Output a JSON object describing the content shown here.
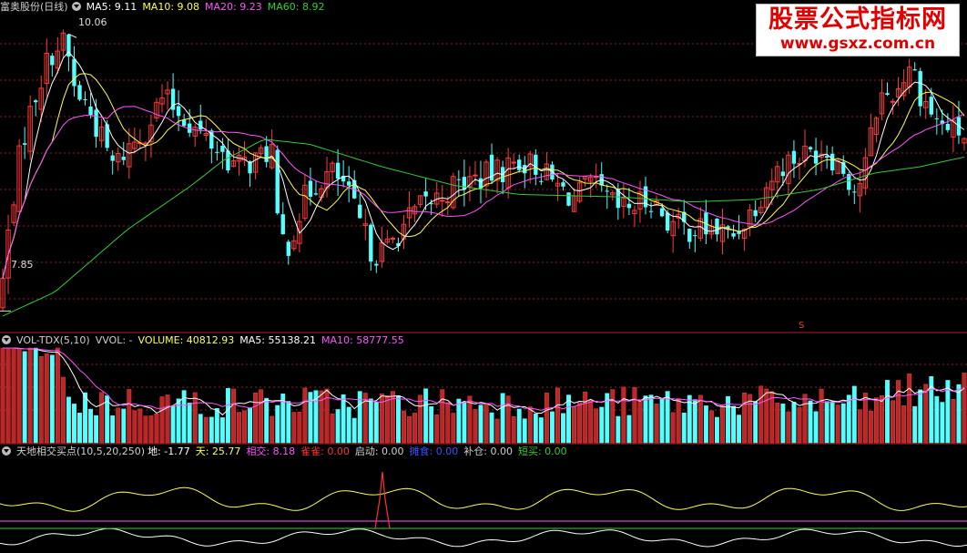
{
  "price_header": {
    "name": "富奥股份(日线)",
    "ma5": "MA5: 9.11",
    "ma10": "MA10: 9.08",
    "ma20": "MA20: 9.23",
    "ma60": "MA60: 8.92"
  },
  "price_labels": {
    "high": "10.06",
    "low": "7.85",
    "marker": "S"
  },
  "vol_header": {
    "name": "VOL-TDX(5,10)",
    "vvol": "VVOL: -",
    "volume": "VOLUME: 40812.93",
    "ma5": "MA5: 55138.21",
    "ma10": "MA10: 58777.55"
  },
  "ind_header": {
    "name": "天地相交买点(10,5,20,250)",
    "di": "地: -1.77",
    "tian": "天: 25.77",
    "xiangjiao": "相交: 8.18",
    "quequ": "雀雀: 0.00",
    "qidong": "启动: 0.00",
    "tanshi": "摊食: 0.00",
    "bucang": "补仓: 0.00",
    "duanmai": "短买: 0.00"
  },
  "watermark": {
    "title": "股票公式指标网",
    "url": "www.gsxz.com.cn"
  },
  "colors": {
    "up": "#ff3b3b",
    "down": "#54ffff",
    "ma5": "#ffffff",
    "ma10": "#ffff55",
    "ma20": "#ff55ff",
    "ma60": "#33cc33",
    "grid": "#8a1f1f"
  },
  "chart_data": [
    {
      "type": "candlestick",
      "title": "富奥股份(日线)",
      "ylim": [
        7.7,
        10.2
      ],
      "price_high": 10.06,
      "price_low": 7.85,
      "control_close": [
        [
          0,
          7.9
        ],
        [
          8,
          8.4
        ],
        [
          18,
          8.95
        ],
        [
          28,
          9.3
        ],
        [
          40,
          9.6
        ],
        [
          55,
          9.9
        ],
        [
          72,
          10.0
        ],
        [
          82,
          9.6
        ],
        [
          95,
          9.5
        ],
        [
          110,
          9.25
        ],
        [
          125,
          9.0
        ],
        [
          140,
          9.15
        ],
        [
          160,
          9.3
        ],
        [
          178,
          9.55
        ],
        [
          195,
          9.45
        ],
        [
          215,
          9.3
        ],
        [
          238,
          9.15
        ],
        [
          260,
          9.0
        ],
        [
          280,
          9.05
        ],
        [
          300,
          9.15
        ],
        [
          303,
          8.55
        ],
        [
          315,
          8.35
        ],
        [
          335,
          8.75
        ],
        [
          350,
          8.9
        ],
        [
          365,
          8.95
        ],
        [
          378,
          8.85
        ],
        [
          395,
          8.55
        ],
        [
          410,
          8.3
        ],
        [
          425,
          8.35
        ],
        [
          445,
          8.55
        ],
        [
          465,
          8.7
        ],
        [
          480,
          8.75
        ],
        [
          500,
          8.85
        ],
        [
          520,
          8.9
        ],
        [
          545,
          8.95
        ],
        [
          570,
          9.05
        ],
        [
          590,
          9.0
        ],
        [
          610,
          8.85
        ],
        [
          630,
          8.75
        ],
        [
          650,
          8.85
        ],
        [
          665,
          8.75
        ],
        [
          680,
          8.65
        ],
        [
          700,
          8.7
        ],
        [
          715,
          8.75
        ],
        [
          735,
          8.55
        ],
        [
          760,
          8.5
        ],
        [
          785,
          8.5
        ],
        [
          805,
          8.45
        ],
        [
          825,
          8.65
        ],
        [
          845,
          8.9
        ],
        [
          865,
          9.05
        ],
        [
          885,
          9.1
        ],
        [
          905,
          9.15
        ],
        [
          925,
          9.0
        ],
        [
          940,
          8.8
        ],
        [
          950,
          9.0
        ],
        [
          965,
          9.55
        ],
        [
          985,
          9.6
        ],
        [
          1000,
          9.85
        ],
        [
          1010,
          9.6
        ],
        [
          1030,
          9.35
        ],
        [
          1045,
          9.3
        ],
        [
          1060,
          9.25
        ]
      ],
      "ma60_control": [
        [
          0,
          7.8
        ],
        [
          60,
          8.0
        ],
        [
          140,
          8.5
        ],
        [
          210,
          8.85
        ],
        [
          245,
          9.05
        ],
        [
          290,
          9.22
        ],
        [
          340,
          9.18
        ],
        [
          420,
          9.0
        ],
        [
          500,
          8.85
        ],
        [
          570,
          8.78
        ],
        [
          680,
          8.76
        ],
        [
          760,
          8.72
        ],
        [
          830,
          8.74
        ],
        [
          900,
          8.82
        ],
        [
          960,
          8.95
        ],
        [
          1010,
          9.0
        ],
        [
          1060,
          9.08
        ]
      ]
    },
    {
      "type": "bar",
      "title": "VOL-TDX(5,10)",
      "volume": 40812.93,
      "ma5": 55138.21,
      "ma10": 58777.55
    },
    {
      "type": "line",
      "title": "天地相交买点(10,5,20,250)",
      "di": -1.77,
      "tian": 25.77,
      "xiangjiao": 8.18,
      "quequ": 0.0,
      "qidong": 0.0,
      "tanshi": 0.0,
      "bucang": 0.0,
      "duanmai": 0.0
    }
  ]
}
